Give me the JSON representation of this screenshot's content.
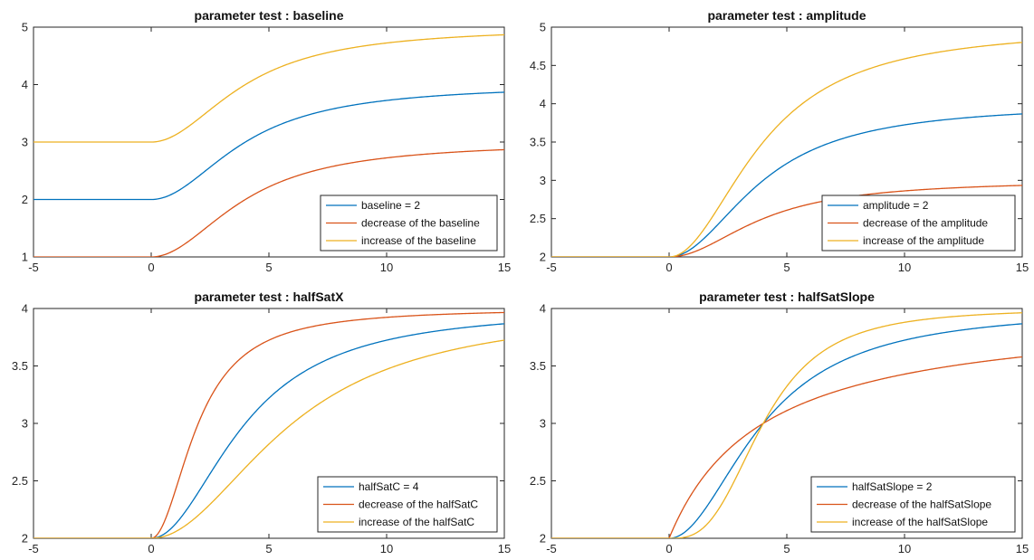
{
  "colors": {
    "blue": "#0072BD",
    "orange": "#D95319",
    "yellow": "#EDB120"
  },
  "chart_data": [
    {
      "type": "line",
      "title": "parameter test : baseline",
      "xlim": [
        -5,
        15
      ],
      "ylim": [
        1,
        5
      ],
      "xticks": [
        -5,
        0,
        5,
        10,
        15
      ],
      "yticks": [
        1,
        2,
        3,
        4,
        5
      ],
      "xtick_labels": [
        "-5",
        "0",
        "5",
        "10",
        "15"
      ],
      "ytick_labels": [
        "1",
        "2",
        "3",
        "4",
        "5"
      ],
      "legend_position": "bottom-right",
      "series": [
        {
          "name": "baseline = 2",
          "color": "#0072BD",
          "params": {
            "baseline": 2,
            "amplitude": 2,
            "halfSatC": 4,
            "halfSatSlope": 2
          }
        },
        {
          "name": "decrease of the baseline",
          "color": "#D95319",
          "params": {
            "baseline": 1,
            "amplitude": 2,
            "halfSatC": 4,
            "halfSatSlope": 2
          }
        },
        {
          "name": "increase of the baseline",
          "color": "#EDB120",
          "params": {
            "baseline": 3,
            "amplitude": 2,
            "halfSatC": 4,
            "halfSatSlope": 2
          }
        }
      ]
    },
    {
      "type": "line",
      "title": "parameter test : amplitude",
      "xlim": [
        -5,
        15
      ],
      "ylim": [
        2,
        5
      ],
      "xticks": [
        -5,
        0,
        5,
        10,
        15
      ],
      "yticks": [
        2,
        2.5,
        3,
        3.5,
        4,
        4.5,
        5
      ],
      "xtick_labels": [
        "-5",
        "0",
        "5",
        "10",
        "15"
      ],
      "ytick_labels": [
        "2",
        "2.5",
        "3",
        "3.5",
        "4",
        "4.5",
        "5"
      ],
      "legend_position": "bottom-right",
      "series": [
        {
          "name": "amplitude = 2",
          "color": "#0072BD",
          "params": {
            "baseline": 2,
            "amplitude": 2,
            "halfSatC": 4,
            "halfSatSlope": 2
          }
        },
        {
          "name": "decrease of the amplitude",
          "color": "#D95319",
          "params": {
            "baseline": 2,
            "amplitude": 1,
            "halfSatC": 4,
            "halfSatSlope": 2
          }
        },
        {
          "name": "increase of the amplitude",
          "color": "#EDB120",
          "params": {
            "baseline": 2,
            "amplitude": 3,
            "halfSatC": 4,
            "halfSatSlope": 2
          }
        }
      ]
    },
    {
      "type": "line",
      "title": "parameter test : halfSatX",
      "xlim": [
        -5,
        15
      ],
      "ylim": [
        2,
        4
      ],
      "xticks": [
        -5,
        0,
        5,
        10,
        15
      ],
      "yticks": [
        2,
        2.5,
        3,
        3.5,
        4
      ],
      "xtick_labels": [
        "-5",
        "0",
        "5",
        "10",
        "15"
      ],
      "ytick_labels": [
        "2",
        "2.5",
        "3",
        "3.5",
        "4"
      ],
      "legend_position": "bottom-right",
      "series": [
        {
          "name": "halfSatC = 4",
          "color": "#0072BD",
          "params": {
            "baseline": 2,
            "amplitude": 2,
            "halfSatC": 4,
            "halfSatSlope": 2
          }
        },
        {
          "name": "decrease of the halfSatC",
          "color": "#D95319",
          "params": {
            "baseline": 2,
            "amplitude": 2,
            "halfSatC": 2,
            "halfSatSlope": 2
          }
        },
        {
          "name": "increase of the halfSatC",
          "color": "#EDB120",
          "params": {
            "baseline": 2,
            "amplitude": 2,
            "halfSatC": 6,
            "halfSatSlope": 2
          }
        }
      ]
    },
    {
      "type": "line",
      "title": "parameter test : halfSatSlope",
      "xlim": [
        -5,
        15
      ],
      "ylim": [
        2,
        4
      ],
      "xticks": [
        -5,
        0,
        5,
        10,
        15
      ],
      "yticks": [
        2,
        2.5,
        3,
        3.5,
        4
      ],
      "xtick_labels": [
        "-5",
        "0",
        "5",
        "10",
        "15"
      ],
      "ytick_labels": [
        "2",
        "2.5",
        "3",
        "3.5",
        "4"
      ],
      "legend_position": "bottom-right",
      "series": [
        {
          "name": "halfSatSlope = 2",
          "color": "#0072BD",
          "params": {
            "baseline": 2,
            "amplitude": 2,
            "halfSatC": 4,
            "halfSatSlope": 2
          }
        },
        {
          "name": "decrease of the halfSatSlope",
          "color": "#D95319",
          "params": {
            "baseline": 2,
            "amplitude": 2,
            "halfSatC": 4,
            "halfSatSlope": 1
          }
        },
        {
          "name": "increase of the halfSatSlope",
          "color": "#EDB120",
          "params": {
            "baseline": 2,
            "amplitude": 2,
            "halfSatC": 4,
            "halfSatSlope": 3
          }
        }
      ]
    }
  ]
}
